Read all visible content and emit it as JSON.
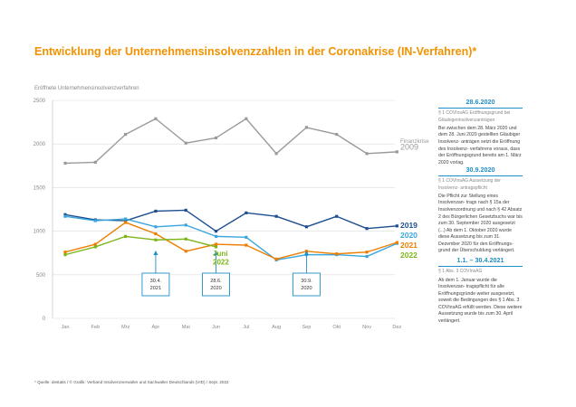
{
  "header": {
    "title": "Entwicklung der Unternehmensinsolvenzzahlen in der Coronakrise (IN-Verfahren)*",
    "y_axis_title": "Eröffnete Unternehmensinsolvenzverfahren",
    "footnote": "* Quelle: destatis / © Grafik: Verband Insolvenzverwalter und Sachwalter Deutschlands (VID) / Sept. 2022"
  },
  "colors": {
    "title": "#f39200",
    "2009": "#9a9a9a",
    "2019": "#1d4f91",
    "2020": "#3aa6dd",
    "2021": "#ef7d00",
    "2022": "#7cb518",
    "callout": "#1f8fc9"
  },
  "chart_data": {
    "type": "line",
    "categories": [
      "Jan",
      "Feb",
      "Mrz",
      "Apr",
      "Mai",
      "Jun",
      "Jul",
      "Aug",
      "Sep",
      "Okt",
      "Nov",
      "Dez"
    ],
    "ylim": [
      0,
      2500
    ],
    "yticks": [
      0,
      500,
      1000,
      1500,
      2000,
      2500
    ],
    "grid": true,
    "series": [
      {
        "name": "Finanzkrise 2009",
        "key": "2009",
        "values": [
          1780,
          1790,
          2110,
          2290,
          2010,
          2070,
          2290,
          1890,
          2190,
          2110,
          1890,
          1910
        ]
      },
      {
        "name": "2019",
        "key": "2019",
        "values": [
          1190,
          1130,
          1120,
          1230,
          1240,
          1000,
          1210,
          1170,
          1050,
          1170,
          1030,
          1060
        ]
      },
      {
        "name": "2020",
        "key": "2020",
        "values": [
          1170,
          1120,
          1140,
          1050,
          1070,
          940,
          930,
          670,
          730,
          730,
          710,
          860
        ]
      },
      {
        "name": "2021",
        "key": "2021",
        "values": [
          760,
          850,
          1100,
          970,
          770,
          850,
          840,
          680,
          770,
          740,
          760,
          870
        ]
      },
      {
        "name": "2022",
        "key": "2022",
        "values": [
          730,
          820,
          940,
          900,
          910,
          820,
          null,
          null,
          null,
          null,
          null,
          null
        ]
      }
    ],
    "series_labels": [
      {
        "key": "2009",
        "text": "Finanzkrise\n2009"
      },
      {
        "key": "2019",
        "text": "2019"
      },
      {
        "key": "2020",
        "text": "2020"
      },
      {
        "key": "2021",
        "text": "2021"
      },
      {
        "key": "2022",
        "text": "2022"
      },
      {
        "key": "2022",
        "text": "Juni\n2022"
      }
    ],
    "callouts": [
      {
        "month": "Apr",
        "text": "30.4.\n2021"
      },
      {
        "month": "Jun",
        "text": "28.6.\n2020"
      },
      {
        "month": "Sep",
        "text": "30.9.\n2020"
      }
    ]
  },
  "panels": [
    {
      "date": "28.6.2020",
      "subtitle": "§ 1 COVInsAG Eröffnungsgrund bei Gläubigerinsolvenzanträgen",
      "body": "Bei zwischen dem 28. März 2020 und dem 28. Juni 2020 gestellten Gläubiger Insolvenz- anträgen setzt die Eröffnung des Insolvenz- verfahrens voraus, dass der Eröffnungsgrund bereits am 1. März 2020 vorlag."
    },
    {
      "date": "30.9.2020",
      "subtitle": "§ 1 COVInsAG Aussetzung der Insolvenz- antragspflicht",
      "body": "Die Pflicht zur Stellung eines Insolvenzan- trags nach § 15a der Insolvenzordnung und nach § 42 Absatz 2 des Bürgerlichen Gesetzbuchs war bis zum 30. September 2020 ausgesetzt (...) Ab dem 1. Oktober 2020 wurde diese Aussetzung bis zum 31. Dezember 2020 für den Eröffnungs- grund der Überschuldung verlängert."
    },
    {
      "date": "1.1. – 30.4.2021",
      "subtitle": "§ 1 Abs. 3 COVInsAG",
      "body": "Ab dem 1. Januar wurde die Insolvenzan- tragspflicht für alle Eröffnungsgründe weiter ausgesetzt, soweit die Bedingungen des § 1 Abs. 3 COVInsAG erfüllt werden. Diese weitere Aussetzung wurde bis zum 30. April verlängert."
    }
  ]
}
